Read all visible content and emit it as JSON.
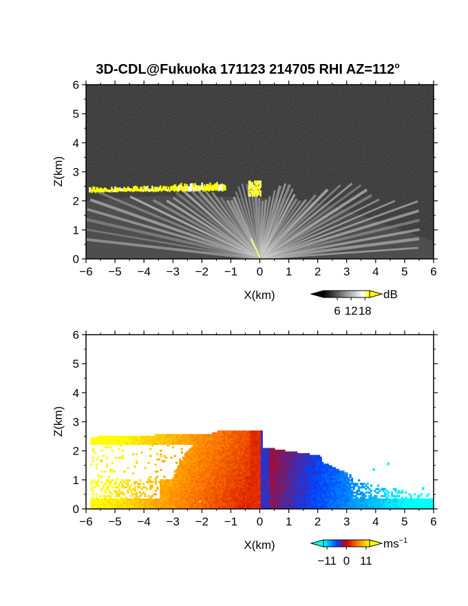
{
  "title": "3D-CDL@Fukuoka 171123 214705 RHI AZ=112",
  "title_superscript": "o",
  "chart_data": [
    {
      "type": "heatmap",
      "panel": "reflectivity (backscatter intensity)",
      "xlabel": "X(km)",
      "ylabel": "Z(km)",
      "xlim": [
        -6,
        6
      ],
      "ylim": [
        0,
        6
      ],
      "xticks": [
        -6,
        -5,
        -4,
        -3,
        -2,
        -1,
        0,
        1,
        2,
        3,
        4,
        5,
        6
      ],
      "yticks": [
        0,
        1,
        2,
        3,
        4,
        5,
        6
      ],
      "colorbar": {
        "unit": "dB",
        "ticks": [
          6,
          12,
          18
        ],
        "colormap": [
          "#000000",
          "#ffffff",
          "#ffff00"
        ],
        "range": [
          0,
          20
        ]
      },
      "features": {
        "cloud_base_layer": {
          "x_range": [
            -5.9,
            -1.2
          ],
          "z_range": [
            2.2,
            2.6
          ],
          "color": "#ffff00"
        },
        "cloud_patch": {
          "x_range": [
            -0.4,
            0.0
          ],
          "z_range": [
            2.2,
            2.7
          ],
          "color": "#ffff00"
        },
        "boundary_layer_fan_top_km": 2.4
      }
    },
    {
      "type": "heatmap",
      "panel": "doppler velocity",
      "xlabel": "X(km)",
      "ylabel": "Z(km)",
      "xlim": [
        -6,
        6
      ],
      "ylim": [
        0,
        6
      ],
      "xticks": [
        -6,
        -5,
        -4,
        -3,
        -2,
        -1,
        0,
        1,
        2,
        3,
        4,
        5,
        6
      ],
      "yticks": [
        0,
        1,
        2,
        3,
        4,
        5,
        6
      ],
      "colorbar": {
        "unit": "ms",
        "unit_exponent": "−1",
        "ticks": [
          "−11",
          "0",
          "11"
        ],
        "tick_values": [
          -11,
          0,
          11
        ],
        "colormap": [
          "#00ffff",
          "#0000ff",
          "#ff0000",
          "#ffff00"
        ],
        "range": [
          -13,
          13
        ]
      },
      "features": {
        "left_side_velocity": "positive (red-orange-yellow)",
        "right_side_velocity": "negative (blue-cyan)",
        "echo_top_km": 2.6
      }
    }
  ]
}
